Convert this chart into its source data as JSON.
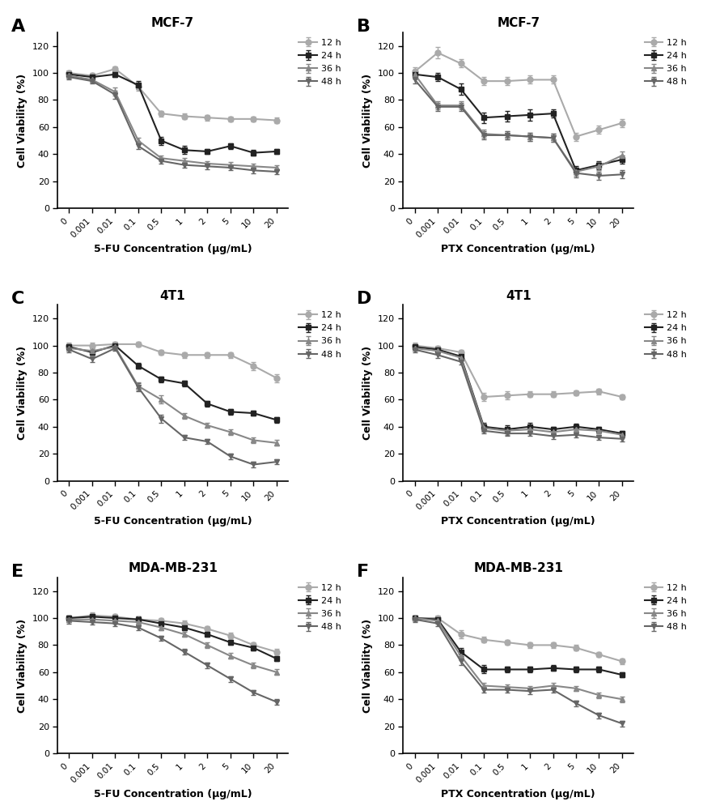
{
  "x_labels": [
    "0",
    "0.001",
    "0.01",
    "0.1",
    "0.5",
    "1",
    "2",
    "5",
    "10",
    "20"
  ],
  "panel_A": {
    "title": "MCF-7",
    "xlabel": "5-FU Concentration (μg/mL)",
    "data": {
      "12h": [
        100,
        98,
        103,
        90,
        70,
        68,
        67,
        66,
        66,
        65
      ],
      "24h": [
        99,
        97,
        99,
        91,
        50,
        43,
        42,
        46,
        41,
        42
      ],
      "36h": [
        98,
        95,
        86,
        50,
        37,
        35,
        33,
        32,
        31,
        30
      ],
      "48h": [
        97,
        94,
        84,
        46,
        35,
        32,
        31,
        30,
        28,
        27
      ]
    },
    "errors": {
      "12h": [
        2,
        2,
        2,
        3,
        2,
        2,
        2,
        2,
        2,
        2
      ],
      "24h": [
        2,
        2,
        2,
        3,
        3,
        3,
        2,
        2,
        2,
        2
      ],
      "36h": [
        2,
        2,
        3,
        2,
        2,
        2,
        2,
        2,
        2,
        2
      ],
      "48h": [
        2,
        2,
        3,
        2,
        2,
        2,
        2,
        2,
        2,
        2
      ]
    }
  },
  "panel_B": {
    "title": "MCF-7",
    "xlabel": "PTX Concentration (μg/mL)",
    "data": {
      "12h": [
        101,
        115,
        107,
        94,
        94,
        95,
        95,
        53,
        58,
        63
      ],
      "24h": [
        99,
        97,
        88,
        67,
        68,
        69,
        70,
        28,
        32,
        36
      ],
      "36h": [
        99,
        76,
        76,
        55,
        54,
        53,
        52,
        27,
        31,
        39
      ],
      "48h": [
        95,
        75,
        75,
        54,
        54,
        53,
        52,
        26,
        24,
        25
      ]
    },
    "errors": {
      "12h": [
        3,
        4,
        3,
        3,
        3,
        3,
        3,
        3,
        3,
        3
      ],
      "24h": [
        3,
        3,
        4,
        4,
        4,
        4,
        3,
        3,
        3,
        3
      ],
      "36h": [
        3,
        3,
        3,
        3,
        3,
        3,
        3,
        3,
        3,
        3
      ],
      "48h": [
        3,
        3,
        3,
        3,
        3,
        3,
        3,
        3,
        3,
        3
      ]
    }
  },
  "panel_C": {
    "title": "4T1",
    "xlabel": "5-FU Concentration (μg/mL)",
    "data": {
      "12h": [
        100,
        100,
        101,
        101,
        95,
        93,
        93,
        93,
        85,
        76
      ],
      "24h": [
        99,
        95,
        100,
        85,
        75,
        72,
        57,
        51,
        50,
        45
      ],
      "36h": [
        98,
        96,
        99,
        70,
        60,
        48,
        41,
        36,
        30,
        28
      ],
      "48h": [
        97,
        90,
        98,
        69,
        46,
        32,
        29,
        18,
        12,
        14
      ]
    },
    "errors": {
      "12h": [
        2,
        2,
        2,
        2,
        2,
        2,
        2,
        2,
        3,
        3
      ],
      "24h": [
        2,
        2,
        2,
        2,
        2,
        2,
        2,
        2,
        2,
        2
      ],
      "36h": [
        2,
        2,
        2,
        3,
        3,
        2,
        2,
        2,
        2,
        2
      ],
      "48h": [
        2,
        2,
        2,
        3,
        3,
        2,
        2,
        2,
        2,
        2
      ]
    }
  },
  "panel_D": {
    "title": "4T1",
    "xlabel": "PTX Concentration (μg/mL)",
    "data": {
      "12h": [
        100,
        98,
        95,
        62,
        63,
        64,
        64,
        65,
        66,
        62
      ],
      "24h": [
        99,
        97,
        92,
        40,
        38,
        40,
        38,
        40,
        38,
        35
      ],
      "36h": [
        98,
        96,
        91,
        39,
        37,
        38,
        36,
        38,
        37,
        34
      ],
      "48h": [
        97,
        93,
        88,
        37,
        35,
        35,
        33,
        34,
        32,
        31
      ]
    },
    "errors": {
      "12h": [
        2,
        2,
        2,
        3,
        3,
        2,
        2,
        2,
        2,
        2
      ],
      "24h": [
        2,
        2,
        2,
        3,
        3,
        3,
        2,
        2,
        2,
        2
      ],
      "36h": [
        2,
        2,
        2,
        3,
        3,
        2,
        2,
        2,
        2,
        2
      ],
      "48h": [
        2,
        2,
        2,
        2,
        2,
        2,
        2,
        2,
        2,
        2
      ]
    }
  },
  "panel_E": {
    "title": "MDA-MB-231",
    "xlabel": "5-FU Concentration (μg/mL)",
    "data": {
      "12h": [
        100,
        102,
        101,
        99,
        98,
        96,
        92,
        87,
        80,
        75
      ],
      "24h": [
        100,
        101,
        100,
        99,
        96,
        93,
        88,
        82,
        78,
        70
      ],
      "36h": [
        99,
        99,
        98,
        97,
        93,
        88,
        80,
        72,
        65,
        60
      ],
      "48h": [
        98,
        97,
        96,
        93,
        85,
        75,
        65,
        55,
        45,
        38
      ]
    },
    "errors": {
      "12h": [
        2,
        2,
        2,
        2,
        2,
        2,
        2,
        2,
        2,
        2
      ],
      "24h": [
        2,
        2,
        2,
        2,
        2,
        2,
        2,
        2,
        2,
        2
      ],
      "36h": [
        2,
        2,
        2,
        2,
        2,
        2,
        2,
        2,
        2,
        2
      ],
      "48h": [
        2,
        2,
        2,
        2,
        2,
        2,
        2,
        2,
        2,
        2
      ]
    }
  },
  "panel_F": {
    "title": "MDA-MB-231",
    "xlabel": "PTX Concentration (μg/mL)",
    "data": {
      "12h": [
        100,
        100,
        88,
        84,
        82,
        80,
        80,
        78,
        73,
        68
      ],
      "24h": [
        100,
        99,
        75,
        62,
        62,
        62,
        63,
        62,
        62,
        58
      ],
      "36h": [
        100,
        98,
        72,
        50,
        49,
        48,
        50,
        48,
        43,
        40
      ],
      "48h": [
        99,
        96,
        68,
        47,
        47,
        46,
        47,
        37,
        28,
        22
      ]
    },
    "errors": {
      "12h": [
        2,
        2,
        3,
        2,
        2,
        2,
        2,
        2,
        2,
        2
      ],
      "24h": [
        2,
        2,
        3,
        3,
        2,
        2,
        2,
        2,
        2,
        2
      ],
      "36h": [
        2,
        2,
        3,
        2,
        2,
        2,
        2,
        2,
        2,
        2
      ],
      "48h": [
        2,
        2,
        3,
        2,
        2,
        2,
        2,
        2,
        2,
        2
      ]
    }
  },
  "hours": [
    "12h",
    "24h",
    "36h",
    "48h"
  ],
  "colors": {
    "12h": "#aaaaaa",
    "24h": "#222222",
    "36h": "#888888",
    "48h": "#666666"
  },
  "markers": {
    "12h": "o",
    "24h": "s",
    "36h": "^",
    "48h": "v"
  },
  "ylim": [
    0,
    130
  ],
  "yticks": [
    0,
    20,
    40,
    60,
    80,
    100,
    120
  ],
  "background_color": "#ffffff",
  "line_width": 1.5,
  "marker_size": 5,
  "hspace": 0.55,
  "wspace": 0.55
}
